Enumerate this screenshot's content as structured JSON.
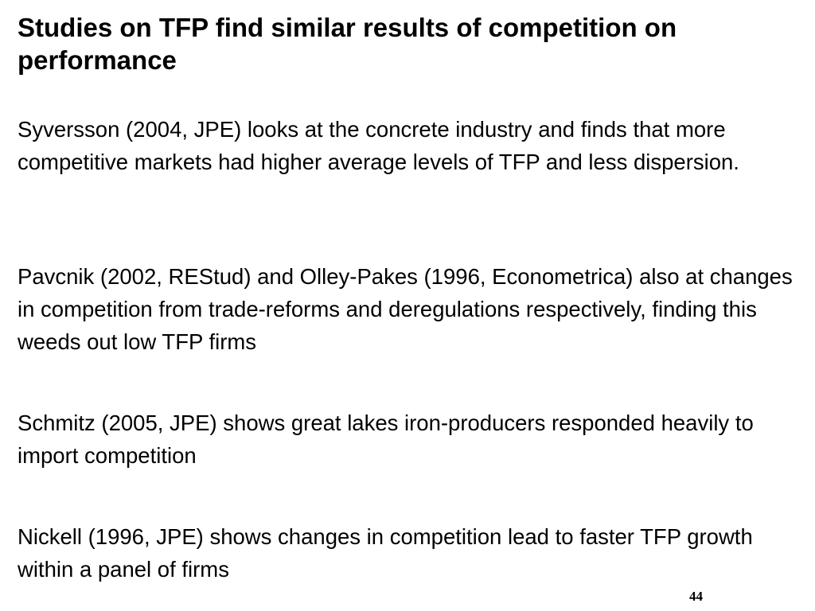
{
  "slide": {
    "title": "Studies on TFP find similar results of competition on performance",
    "paragraphs": [
      "Syversson (2004, JPE) looks at the concrete industry and finds that more competitive markets had higher average levels of TFP and less dispersion.",
      "Pavcnik (2002, REStud) and Olley-Pakes (1996, Econometrica) also at changes in competition from trade-reforms and deregulations respectively, finding this weeds out low TFP firms",
      "Schmitz (2005, JPE) shows great lakes iron-producers responded heavily to import competition",
      "Nickell (1996, JPE) shows changes in competition lead to faster TFP growth within a panel of firms"
    ],
    "page_number": "44"
  }
}
